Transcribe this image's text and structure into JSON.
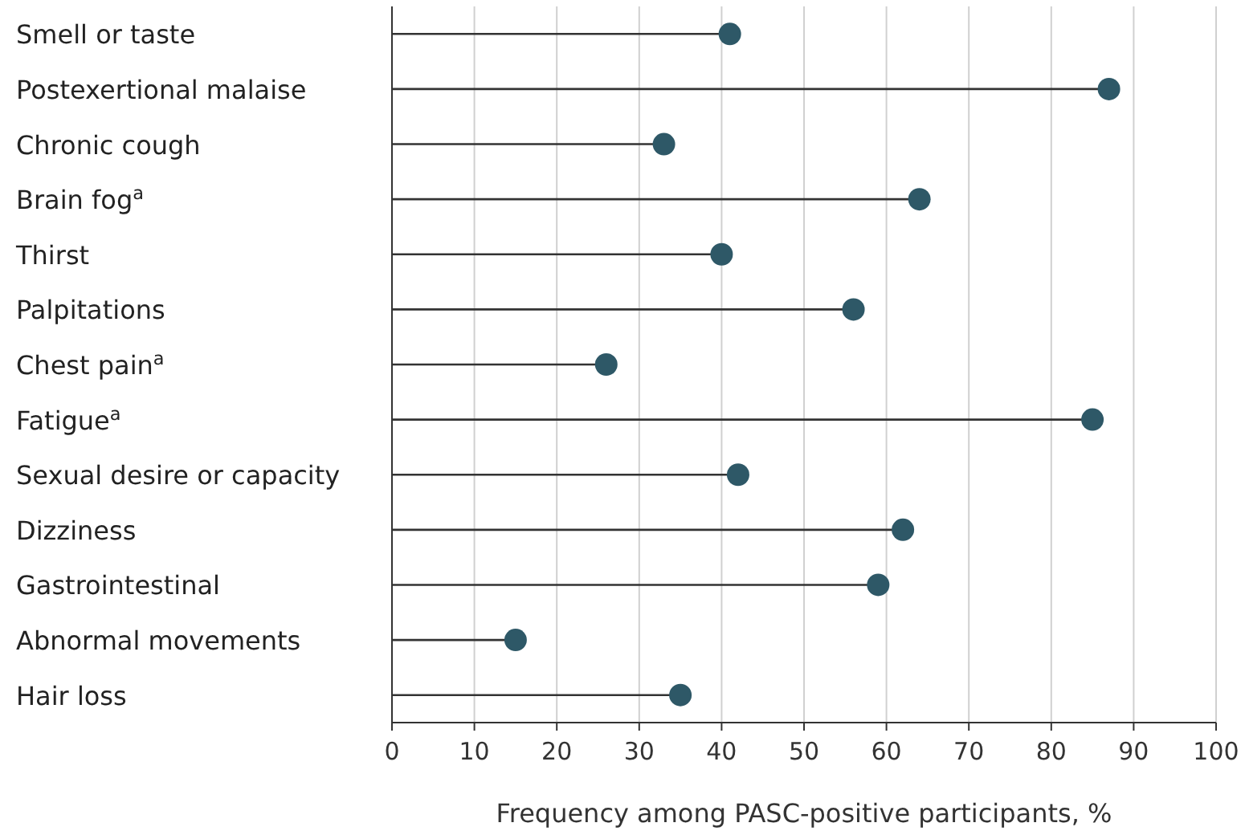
{
  "chart_data": {
    "type": "lollipop",
    "orientation": "horizontal",
    "xlabel": "Frequency among PASC-positive participants, %",
    "categories": [
      "Smell or taste",
      "Postexertional malaise",
      "Chronic cough",
      "Brain fog$^{a}$",
      "Thirst",
      "Palpitations",
      "Chest pain$^{a}$",
      "Fatigue$^{a}$",
      "Sexual desire or capacity",
      "Dizziness",
      "Gastrointestinal",
      "Abnormal movements",
      "Hair loss"
    ],
    "values": [
      41,
      87,
      33,
      64,
      40,
      56,
      26,
      85,
      42,
      62,
      59,
      15,
      35
    ],
    "color": "#2e5867",
    "xlim": [
      0,
      100
    ],
    "xticks": [
      0,
      10,
      20,
      30,
      40,
      50,
      60,
      70,
      80,
      90,
      100
    ],
    "grid": "x",
    "marker": "circle"
  }
}
